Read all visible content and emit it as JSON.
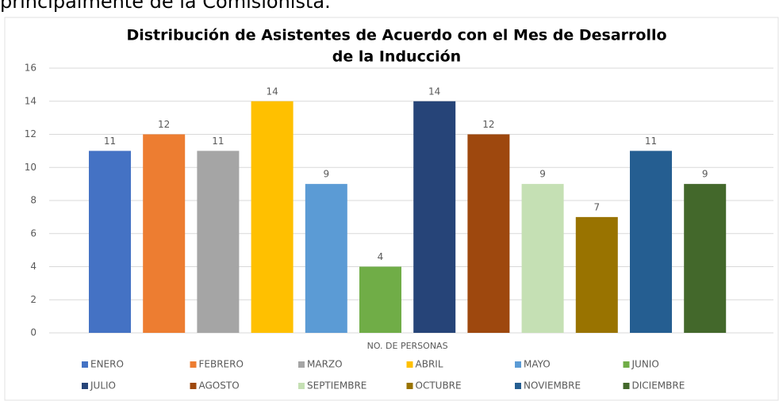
{
  "document_text": "principalmente de la Comisionista.",
  "chart_data": {
    "type": "bar",
    "title": [
      "Distribución de Asistentes de Acuerdo con el Mes de Desarrollo",
      "de la Inducción"
    ],
    "categories": [
      "NO. DE PERSONAS"
    ],
    "series": [
      {
        "name": "ENERO",
        "color": "#4472c4",
        "values": [
          11
        ]
      },
      {
        "name": "FEBRERO",
        "color": "#ed7d31",
        "values": [
          12
        ]
      },
      {
        "name": "MARZO",
        "color": "#a5a5a5",
        "values": [
          11
        ]
      },
      {
        "name": "ABRIL",
        "color": "#ffc000",
        "values": [
          14
        ]
      },
      {
        "name": "MAYO",
        "color": "#5b9bd5",
        "values": [
          9
        ]
      },
      {
        "name": "JUNIO",
        "color": "#70ad47",
        "values": [
          4
        ]
      },
      {
        "name": "JULIO",
        "color": "#264478",
        "values": [
          14
        ]
      },
      {
        "name": "AGOSTO",
        "color": "#9e480e",
        "values": [
          12
        ]
      },
      {
        "name": "SEPTIEMBRE",
        "color": "#c5e0b4",
        "values": [
          9
        ]
      },
      {
        "name": "OCTUBRE",
        "color": "#997300",
        "values": [
          7
        ]
      },
      {
        "name": "NOVIEMBRE",
        "color": "#255e91",
        "values": [
          11
        ]
      },
      {
        "name": "DICIEMBRE",
        "color": "#43682b",
        "values": [
          9
        ]
      }
    ],
    "ylim": [
      0,
      16
    ],
    "yticks": [
      0,
      2,
      4,
      6,
      8,
      10,
      12,
      14,
      16
    ],
    "grid": true,
    "legend": "bottom"
  }
}
